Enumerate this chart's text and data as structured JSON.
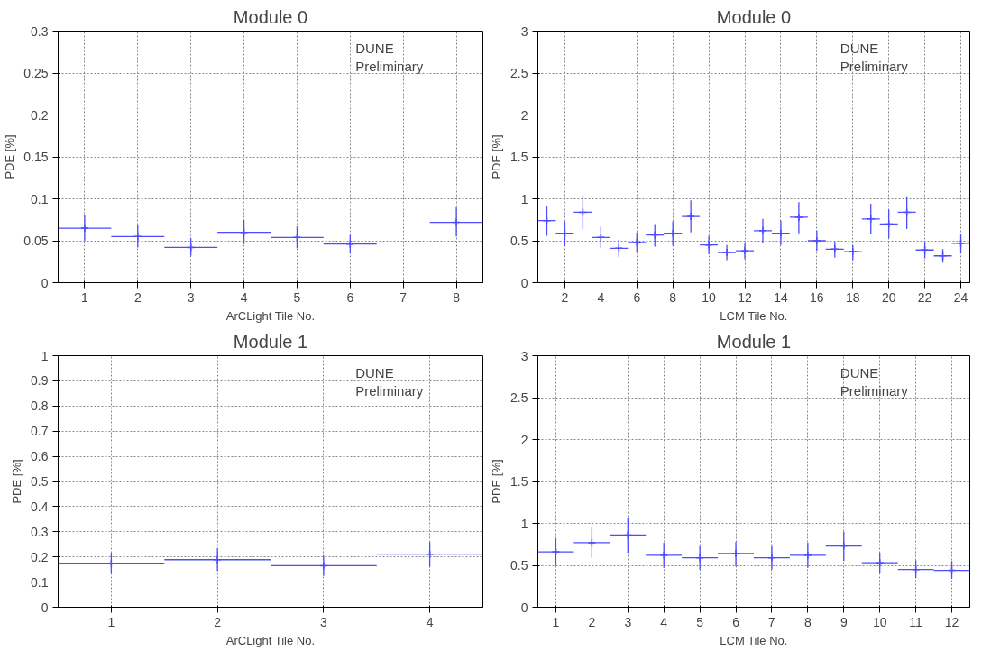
{
  "chart_data": [
    {
      "type": "scatter",
      "title": "Module 0",
      "xlabel": "ArCLight Tile No.",
      "ylabel": "PDE [%]",
      "annotations": [
        "DUNE",
        "Preliminary"
      ],
      "marker": "cross",
      "grid": true,
      "x": [
        1,
        2,
        3,
        4,
        5,
        6,
        7,
        8
      ],
      "xlim": [
        0.5,
        8.5
      ],
      "xticks": [
        1,
        2,
        3,
        4,
        5,
        6,
        7,
        8
      ],
      "ylim": [
        0,
        0.3
      ],
      "yticks": [
        0,
        0.05,
        0.1,
        0.15,
        0.2,
        0.25,
        0.3
      ],
      "series": [
        {
          "color": "#4d4dff",
          "values": [
            0.065,
            0.055,
            0.042,
            0.06,
            0.054,
            0.046,
            null,
            0.072
          ],
          "errors": [
            [
              0.05,
              0.081
            ],
            [
              0.042,
              0.069
            ],
            [
              0.032,
              0.053
            ],
            [
              0.046,
              0.075
            ],
            [
              0.041,
              0.067
            ],
            [
              0.035,
              0.057
            ],
            null,
            [
              0.055,
              0.09
            ]
          ],
          "xerrors": [
            0.5,
            0.5,
            0.5,
            0.5,
            0.5,
            0.5,
            null,
            0.5
          ]
        }
      ]
    },
    {
      "type": "scatter",
      "title": "Module 0",
      "xlabel": "LCM Tile No.",
      "ylabel": "PDE [%]",
      "annotations": [
        "DUNE",
        "Preliminary"
      ],
      "marker": "cross",
      "grid": true,
      "x": [
        1,
        2,
        3,
        4,
        5,
        6,
        7,
        8,
        9,
        10,
        11,
        12,
        13,
        14,
        15,
        16,
        17,
        18,
        19,
        20,
        21,
        22,
        23,
        24
      ],
      "xlim": [
        0.5,
        24.5
      ],
      "xticks": [
        2,
        4,
        6,
        8,
        10,
        12,
        14,
        16,
        18,
        20,
        22,
        24
      ],
      "ylim": [
        0,
        3
      ],
      "yticks": [
        0,
        0.5,
        1,
        1.5,
        2,
        2.5,
        3
      ],
      "series": [
        {
          "color": "#4d4dff",
          "values": [
            0.74,
            0.59,
            0.84,
            0.54,
            0.41,
            0.48,
            0.57,
            0.59,
            0.79,
            0.45,
            0.36,
            0.38,
            0.62,
            0.59,
            0.78,
            0.5,
            0.4,
            0.37,
            0.76,
            0.7,
            0.84,
            0.39,
            0.32,
            0.47
          ],
          "errors": [
            [
              0.56,
              0.92
            ],
            [
              0.44,
              0.73
            ],
            [
              0.64,
              1.04
            ],
            [
              0.41,
              0.67
            ],
            [
              0.31,
              0.51
            ],
            [
              0.37,
              0.6
            ],
            [
              0.43,
              0.7
            ],
            [
              0.44,
              0.73
            ],
            [
              0.6,
              0.98
            ],
            [
              0.34,
              0.56
            ],
            [
              0.27,
              0.45
            ],
            [
              0.28,
              0.47
            ],
            [
              0.47,
              0.76
            ],
            [
              0.45,
              0.74
            ],
            [
              0.59,
              0.96
            ],
            [
              0.38,
              0.62
            ],
            [
              0.3,
              0.49
            ],
            [
              0.27,
              0.45
            ],
            [
              0.58,
              0.94
            ],
            [
              0.53,
              0.87
            ],
            [
              0.64,
              1.03
            ],
            [
              0.29,
              0.49
            ],
            [
              0.24,
              0.4
            ],
            [
              0.35,
              0.58
            ]
          ],
          "xerrors": [
            0.5,
            0.5,
            0.5,
            0.5,
            0.5,
            0.5,
            0.5,
            0.5,
            0.5,
            0.5,
            0.5,
            0.5,
            0.5,
            0.5,
            0.5,
            0.5,
            0.5,
            0.5,
            0.5,
            0.5,
            0.5,
            0.5,
            0.5,
            0.5
          ]
        }
      ]
    },
    {
      "type": "scatter",
      "title": "Module 1",
      "xlabel": "ArCLight Tile No.",
      "ylabel": "PDE [%]",
      "annotations": [
        "DUNE",
        "Preliminary"
      ],
      "marker": "cross",
      "grid": true,
      "x": [
        1,
        2,
        3,
        4
      ],
      "xlim": [
        0.5,
        4.5
      ],
      "xticks": [
        1,
        2,
        3,
        4
      ],
      "ylim": [
        0,
        1
      ],
      "yticks": [
        0,
        0.1,
        0.2,
        0.3,
        0.4,
        0.5,
        0.6,
        0.7,
        0.8,
        0.9,
        1
      ],
      "series": [
        {
          "color": "#4d4dff",
          "values": [
            0.175,
            0.189,
            0.165,
            0.211
          ],
          "errors": [
            [
              0.134,
              0.216
            ],
            [
              0.144,
              0.234
            ],
            [
              0.125,
              0.204
            ],
            [
              0.161,
              0.259
            ]
          ],
          "xerrors": [
            0.5,
            0.5,
            0.5,
            0.5
          ]
        }
      ]
    },
    {
      "type": "scatter",
      "title": "Module 1",
      "xlabel": "LCM Tile No.",
      "ylabel": "PDE [%]",
      "annotations": [
        "DUNE",
        "Preliminary"
      ],
      "marker": "cross",
      "grid": true,
      "x": [
        1,
        2,
        3,
        4,
        5,
        6,
        7,
        8,
        9,
        10,
        11,
        12
      ],
      "xlim": [
        0.5,
        12.5
      ],
      "xticks": [
        1,
        2,
        3,
        4,
        5,
        6,
        7,
        8,
        9,
        10,
        11,
        12
      ],
      "ylim": [
        0,
        3
      ],
      "yticks": [
        0,
        0.5,
        1,
        1.5,
        2,
        2.5,
        3
      ],
      "series": [
        {
          "color": "#4d4dff",
          "values": [
            0.66,
            0.77,
            0.86,
            0.62,
            0.59,
            0.64,
            0.59,
            0.62,
            0.73,
            0.53,
            0.45,
            0.44
          ],
          "errors": [
            [
              0.5,
              0.82
            ],
            [
              0.59,
              0.95
            ],
            [
              0.65,
              1.06
            ],
            [
              0.47,
              0.77
            ],
            [
              0.45,
              0.73
            ],
            [
              0.49,
              0.78
            ],
            [
              0.45,
              0.73
            ],
            [
              0.47,
              0.77
            ],
            [
              0.55,
              0.9
            ],
            [
              0.41,
              0.65
            ],
            [
              0.35,
              0.56
            ],
            [
              0.34,
              0.55
            ]
          ],
          "xerrors": [
            0.5,
            0.5,
            0.5,
            0.5,
            0.5,
            0.5,
            0.5,
            0.5,
            0.5,
            0.5,
            0.5,
            0.5
          ]
        }
      ]
    }
  ]
}
